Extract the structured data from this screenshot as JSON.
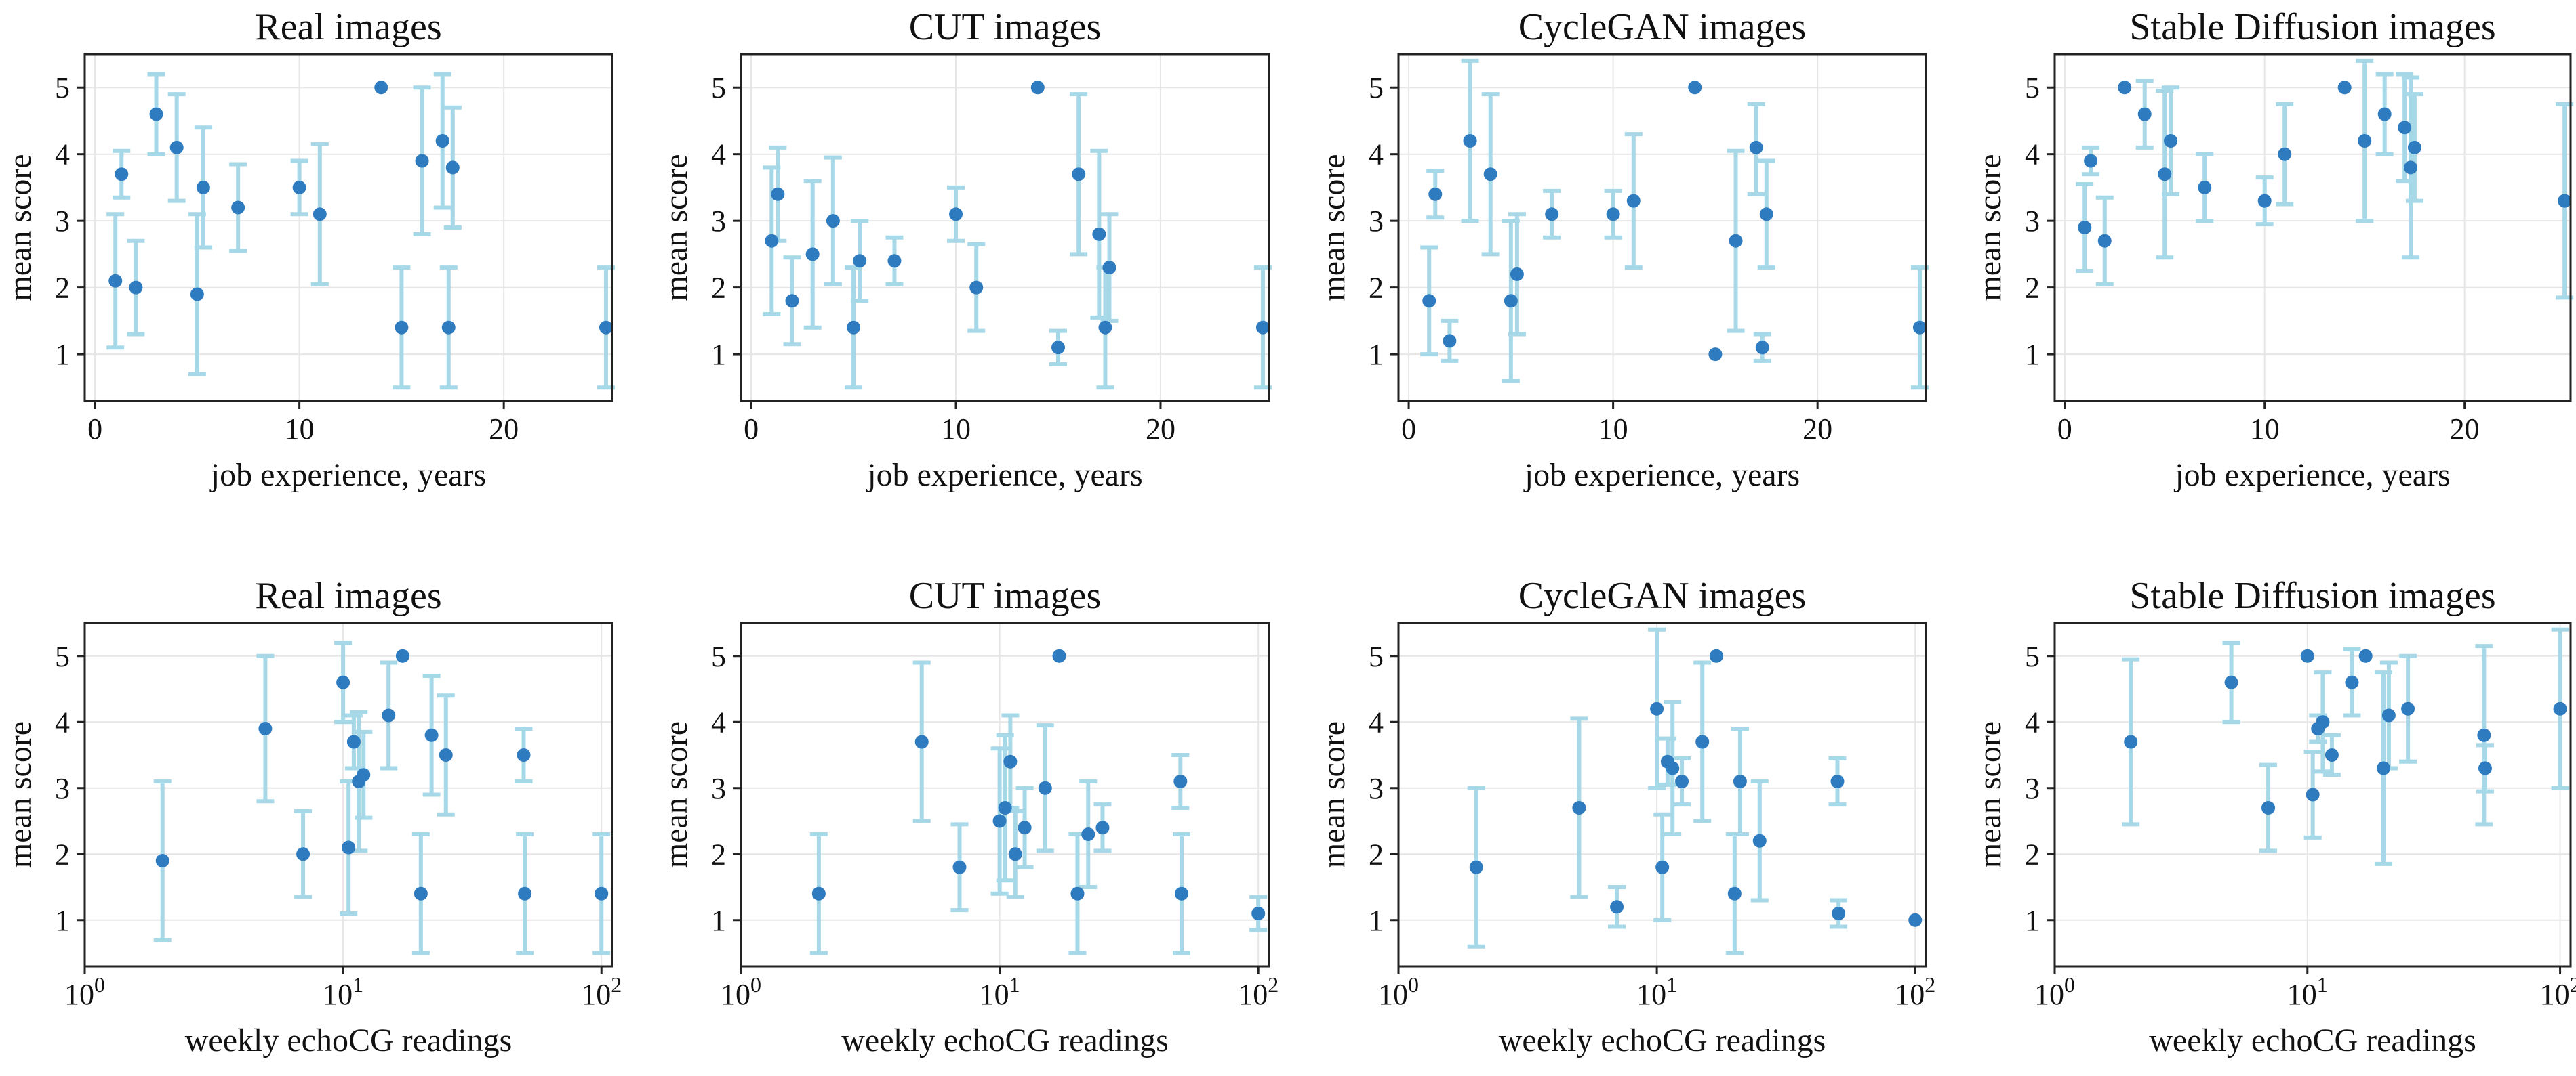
{
  "colors": {
    "point": "#2f7bbf",
    "errorbar": "#a6d8e8",
    "grid": "#e6e6e6",
    "axis": "#222222"
  },
  "chart_data": [
    {
      "type": "scatter",
      "title": "Real images",
      "xlabel": "job experience, years",
      "ylabel": "mean score",
      "xscale": "linear",
      "xlim": [
        -0.5,
        25.3
      ],
      "ylim": [
        0.3,
        5.5
      ],
      "xticks": [
        0,
        10,
        20
      ],
      "yticks": [
        1,
        2,
        3,
        4,
        5
      ],
      "grid": true,
      "error_bars": true,
      "points": [
        {
          "x": 1,
          "y": 2.1,
          "lo": 1.1,
          "hi": 3.1
        },
        {
          "x": 1.3,
          "y": 3.7,
          "lo": 3.35,
          "hi": 4.05
        },
        {
          "x": 2,
          "y": 2.0,
          "lo": 1.3,
          "hi": 2.7
        },
        {
          "x": 3,
          "y": 4.6,
          "lo": 4.0,
          "hi": 5.2
        },
        {
          "x": 4,
          "y": 4.1,
          "lo": 3.3,
          "hi": 4.9
        },
        {
          "x": 5,
          "y": 1.9,
          "lo": 0.7,
          "hi": 3.1
        },
        {
          "x": 5.3,
          "y": 3.5,
          "lo": 2.6,
          "hi": 4.4
        },
        {
          "x": 7,
          "y": 3.2,
          "lo": 2.55,
          "hi": 3.85
        },
        {
          "x": 10,
          "y": 3.5,
          "lo": 3.1,
          "hi": 3.9
        },
        {
          "x": 11,
          "y": 3.1,
          "lo": 2.05,
          "hi": 4.15
        },
        {
          "x": 14,
          "y": 5.0,
          "lo": 5.0,
          "hi": 5.0
        },
        {
          "x": 15,
          "y": 1.4,
          "lo": 0.5,
          "hi": 2.3
        },
        {
          "x": 16,
          "y": 3.9,
          "lo": 2.8,
          "hi": 5.0
        },
        {
          "x": 17,
          "y": 4.2,
          "lo": 3.2,
          "hi": 5.2
        },
        {
          "x": 17.3,
          "y": 1.4,
          "lo": 0.5,
          "hi": 2.3
        },
        {
          "x": 17.5,
          "y": 3.8,
          "lo": 2.9,
          "hi": 4.7
        },
        {
          "x": 25,
          "y": 1.4,
          "lo": 0.5,
          "hi": 2.3
        }
      ]
    },
    {
      "type": "scatter",
      "title": "CUT images",
      "xlabel": "job experience, years",
      "ylabel": "mean score",
      "xscale": "linear",
      "xlim": [
        -0.5,
        25.3
      ],
      "ylim": [
        0.3,
        5.5
      ],
      "xticks": [
        0,
        10,
        20
      ],
      "yticks": [
        1,
        2,
        3,
        4,
        5
      ],
      "grid": true,
      "error_bars": true,
      "points": [
        {
          "x": 1,
          "y": 2.7,
          "lo": 1.6,
          "hi": 3.8
        },
        {
          "x": 1.3,
          "y": 3.4,
          "lo": 2.7,
          "hi": 4.1
        },
        {
          "x": 2,
          "y": 1.8,
          "lo": 1.15,
          "hi": 2.45
        },
        {
          "x": 3,
          "y": 2.5,
          "lo": 1.4,
          "hi": 3.6
        },
        {
          "x": 4,
          "y": 3.0,
          "lo": 2.05,
          "hi": 3.95
        },
        {
          "x": 5,
          "y": 1.4,
          "lo": 0.5,
          "hi": 2.3
        },
        {
          "x": 5.3,
          "y": 2.4,
          "lo": 1.8,
          "hi": 3.0
        },
        {
          "x": 7,
          "y": 2.4,
          "lo": 2.05,
          "hi": 2.75
        },
        {
          "x": 10,
          "y": 3.1,
          "lo": 2.7,
          "hi": 3.5
        },
        {
          "x": 11,
          "y": 2.0,
          "lo": 1.35,
          "hi": 2.65
        },
        {
          "x": 14,
          "y": 5.0,
          "lo": 5.0,
          "hi": 5.0
        },
        {
          "x": 15,
          "y": 1.1,
          "lo": 0.85,
          "hi": 1.35
        },
        {
          "x": 16,
          "y": 3.7,
          "lo": 2.5,
          "hi": 4.9
        },
        {
          "x": 17,
          "y": 2.8,
          "lo": 1.55,
          "hi": 4.05
        },
        {
          "x": 17.3,
          "y": 1.4,
          "lo": 0.5,
          "hi": 2.3
        },
        {
          "x": 17.5,
          "y": 2.3,
          "lo": 1.5,
          "hi": 3.1
        },
        {
          "x": 25,
          "y": 1.4,
          "lo": 0.5,
          "hi": 2.3
        }
      ]
    },
    {
      "type": "scatter",
      "title": "CycleGAN images",
      "xlabel": "job experience, years",
      "ylabel": "mean score",
      "xscale": "linear",
      "xlim": [
        -0.5,
        25.3
      ],
      "ylim": [
        0.3,
        5.5
      ],
      "xticks": [
        0,
        10,
        20
      ],
      "yticks": [
        1,
        2,
        3,
        4,
        5
      ],
      "grid": true,
      "error_bars": true,
      "points": [
        {
          "x": 1,
          "y": 1.8,
          "lo": 1.0,
          "hi": 2.6
        },
        {
          "x": 1.3,
          "y": 3.4,
          "lo": 3.05,
          "hi": 3.75
        },
        {
          "x": 2,
          "y": 1.2,
          "lo": 0.9,
          "hi": 1.5
        },
        {
          "x": 3,
          "y": 4.2,
          "lo": 3.0,
          "hi": 5.4
        },
        {
          "x": 4,
          "y": 3.7,
          "lo": 2.5,
          "hi": 4.9
        },
        {
          "x": 5,
          "y": 1.8,
          "lo": 0.6,
          "hi": 3.0
        },
        {
          "x": 5.3,
          "y": 2.2,
          "lo": 1.3,
          "hi": 3.1
        },
        {
          "x": 7,
          "y": 3.1,
          "lo": 2.75,
          "hi": 3.45
        },
        {
          "x": 10,
          "y": 3.1,
          "lo": 2.75,
          "hi": 3.45
        },
        {
          "x": 11,
          "y": 3.3,
          "lo": 2.3,
          "hi": 4.3
        },
        {
          "x": 14,
          "y": 5.0,
          "lo": 5.0,
          "hi": 5.0
        },
        {
          "x": 15,
          "y": 1.0,
          "lo": 1.0,
          "hi": 1.0
        },
        {
          "x": 16,
          "y": 2.7,
          "lo": 1.35,
          "hi": 4.05
        },
        {
          "x": 17,
          "y": 4.1,
          "lo": 3.4,
          "hi": 4.75
        },
        {
          "x": 17.3,
          "y": 1.1,
          "lo": 0.9,
          "hi": 1.3
        },
        {
          "x": 17.5,
          "y": 3.1,
          "lo": 2.3,
          "hi": 3.9
        },
        {
          "x": 25,
          "y": 1.4,
          "lo": 0.5,
          "hi": 2.3
        }
      ]
    },
    {
      "type": "scatter",
      "title": "Stable Diffusion images",
      "xlabel": "job experience, years",
      "ylabel": "mean score",
      "xscale": "linear",
      "xlim": [
        -0.5,
        25.3
      ],
      "ylim": [
        0.3,
        5.5
      ],
      "xticks": [
        0,
        10,
        20
      ],
      "yticks": [
        1,
        2,
        3,
        4,
        5
      ],
      "grid": true,
      "error_bars": true,
      "points": [
        {
          "x": 1,
          "y": 2.9,
          "lo": 2.25,
          "hi": 3.55
        },
        {
          "x": 1.3,
          "y": 3.9,
          "lo": 3.7,
          "hi": 4.1
        },
        {
          "x": 2,
          "y": 2.7,
          "lo": 2.05,
          "hi": 3.35
        },
        {
          "x": 3,
          "y": 5.0,
          "lo": 5.0,
          "hi": 5.0
        },
        {
          "x": 4,
          "y": 4.6,
          "lo": 4.1,
          "hi": 5.1
        },
        {
          "x": 5,
          "y": 3.7,
          "lo": 2.45,
          "hi": 4.95
        },
        {
          "x": 5.3,
          "y": 4.2,
          "lo": 3.4,
          "hi": 5.0
        },
        {
          "x": 7,
          "y": 3.5,
          "lo": 3.0,
          "hi": 4.0
        },
        {
          "x": 10,
          "y": 3.3,
          "lo": 2.95,
          "hi": 3.65
        },
        {
          "x": 11,
          "y": 4.0,
          "lo": 3.25,
          "hi": 4.75
        },
        {
          "x": 14,
          "y": 5.0,
          "lo": 5.0,
          "hi": 5.0
        },
        {
          "x": 15,
          "y": 4.2,
          "lo": 3.0,
          "hi": 5.4
        },
        {
          "x": 16,
          "y": 4.6,
          "lo": 4.0,
          "hi": 5.2
        },
        {
          "x": 17,
          "y": 4.4,
          "lo": 3.6,
          "hi": 5.2
        },
        {
          "x": 17.3,
          "y": 3.8,
          "lo": 2.45,
          "hi": 5.15
        },
        {
          "x": 17.5,
          "y": 4.1,
          "lo": 3.3,
          "hi": 4.9
        },
        {
          "x": 25,
          "y": 3.3,
          "lo": 1.85,
          "hi": 4.75
        }
      ]
    },
    {
      "type": "scatter",
      "title": "Real images",
      "xlabel": "weekly echoCG readings",
      "ylabel": "mean score",
      "xscale": "log",
      "xlim": [
        1,
        110
      ],
      "ylim": [
        0.3,
        5.5
      ],
      "xticks": [
        1,
        10,
        100
      ],
      "yticks": [
        1,
        2,
        3,
        4,
        5
      ],
      "grid": true,
      "error_bars": true,
      "points": [
        {
          "x": 2,
          "y": 1.9,
          "lo": 0.7,
          "hi": 3.1
        },
        {
          "x": 5,
          "y": 3.9,
          "lo": 2.8,
          "hi": 5.0
        },
        {
          "x": 7,
          "y": 2.0,
          "lo": 1.35,
          "hi": 2.65
        },
        {
          "x": 10,
          "y": 4.6,
          "lo": 4.0,
          "hi": 5.2
        },
        {
          "x": 10.5,
          "y": 2.1,
          "lo": 1.1,
          "hi": 3.1
        },
        {
          "x": 11,
          "y": 3.7,
          "lo": 3.3,
          "hi": 4.1
        },
        {
          "x": 11.5,
          "y": 3.1,
          "lo": 2.05,
          "hi": 4.15
        },
        {
          "x": 12,
          "y": 3.2,
          "lo": 2.55,
          "hi": 3.85
        },
        {
          "x": 15,
          "y": 4.1,
          "lo": 3.3,
          "hi": 4.9
        },
        {
          "x": 17,
          "y": 5.0,
          "lo": 5.0,
          "hi": 5.0
        },
        {
          "x": 20,
          "y": 1.4,
          "lo": 0.5,
          "hi": 2.3
        },
        {
          "x": 22,
          "y": 3.8,
          "lo": 2.9,
          "hi": 4.7
        },
        {
          "x": 25,
          "y": 3.5,
          "lo": 2.6,
          "hi": 4.4
        },
        {
          "x": 50,
          "y": 3.5,
          "lo": 3.1,
          "hi": 3.9
        },
        {
          "x": 50.5,
          "y": 1.4,
          "lo": 0.5,
          "hi": 2.3
        },
        {
          "x": 100,
          "y": 1.4,
          "lo": 0.5,
          "hi": 2.3
        }
      ]
    },
    {
      "type": "scatter",
      "title": "CUT images",
      "xlabel": "weekly echoCG readings",
      "ylabel": "mean score",
      "xscale": "log",
      "xlim": [
        1,
        110
      ],
      "ylim": [
        0.3,
        5.5
      ],
      "xticks": [
        1,
        10,
        100
      ],
      "yticks": [
        1,
        2,
        3,
        4,
        5
      ],
      "grid": true,
      "error_bars": true,
      "points": [
        {
          "x": 2,
          "y": 1.4,
          "lo": 0.5,
          "hi": 2.3
        },
        {
          "x": 5,
          "y": 3.7,
          "lo": 2.5,
          "hi": 4.9
        },
        {
          "x": 7,
          "y": 1.8,
          "lo": 1.15,
          "hi": 2.45
        },
        {
          "x": 10,
          "y": 2.5,
          "lo": 1.4,
          "hi": 3.6
        },
        {
          "x": 10.5,
          "y": 2.7,
          "lo": 1.6,
          "hi": 3.8
        },
        {
          "x": 11,
          "y": 3.4,
          "lo": 2.7,
          "hi": 4.1
        },
        {
          "x": 11.5,
          "y": 2.0,
          "lo": 1.35,
          "hi": 2.65
        },
        {
          "x": 12.5,
          "y": 2.4,
          "lo": 1.8,
          "hi": 3.0
        },
        {
          "x": 15,
          "y": 3.0,
          "lo": 2.05,
          "hi": 3.95
        },
        {
          "x": 17,
          "y": 5.0,
          "lo": 5.0,
          "hi": 5.0
        },
        {
          "x": 20,
          "y": 1.4,
          "lo": 0.5,
          "hi": 2.3
        },
        {
          "x": 22,
          "y": 2.3,
          "lo": 1.5,
          "hi": 3.1
        },
        {
          "x": 25,
          "y": 2.4,
          "lo": 2.05,
          "hi": 2.75
        },
        {
          "x": 50,
          "y": 3.1,
          "lo": 2.7,
          "hi": 3.5
        },
        {
          "x": 50.5,
          "y": 1.4,
          "lo": 0.5,
          "hi": 2.3
        },
        {
          "x": 100,
          "y": 1.1,
          "lo": 0.85,
          "hi": 1.35
        }
      ]
    },
    {
      "type": "scatter",
      "title": "CycleGAN images",
      "xlabel": "weekly echoCG readings",
      "ylabel": "mean score",
      "xscale": "log",
      "xlim": [
        1,
        110
      ],
      "ylim": [
        0.3,
        5.5
      ],
      "xticks": [
        1,
        10,
        100
      ],
      "yticks": [
        1,
        2,
        3,
        4,
        5
      ],
      "grid": true,
      "error_bars": true,
      "points": [
        {
          "x": 2,
          "y": 1.8,
          "lo": 0.6,
          "hi": 3.0
        },
        {
          "x": 5,
          "y": 2.7,
          "lo": 1.35,
          "hi": 4.05
        },
        {
          "x": 7,
          "y": 1.2,
          "lo": 0.9,
          "hi": 1.5
        },
        {
          "x": 10,
          "y": 4.2,
          "lo": 3.0,
          "hi": 5.4
        },
        {
          "x": 10.5,
          "y": 1.8,
          "lo": 1.0,
          "hi": 2.6
        },
        {
          "x": 11,
          "y": 3.4,
          "lo": 3.05,
          "hi": 3.75
        },
        {
          "x": 11.5,
          "y": 3.3,
          "lo": 2.3,
          "hi": 4.3
        },
        {
          "x": 12.5,
          "y": 3.1,
          "lo": 2.75,
          "hi": 3.45
        },
        {
          "x": 15,
          "y": 3.7,
          "lo": 2.5,
          "hi": 4.9
        },
        {
          "x": 17,
          "y": 5.0,
          "lo": 5.0,
          "hi": 5.0
        },
        {
          "x": 20,
          "y": 1.4,
          "lo": 0.5,
          "hi": 2.3
        },
        {
          "x": 21,
          "y": 3.1,
          "lo": 2.3,
          "hi": 3.9
        },
        {
          "x": 25,
          "y": 2.2,
          "lo": 1.3,
          "hi": 3.1
        },
        {
          "x": 50,
          "y": 3.1,
          "lo": 2.75,
          "hi": 3.45
        },
        {
          "x": 50.5,
          "y": 1.1,
          "lo": 0.9,
          "hi": 1.3
        },
        {
          "x": 100,
          "y": 1.0,
          "lo": 1.0,
          "hi": 1.0
        }
      ]
    },
    {
      "type": "scatter",
      "title": "Stable Diffusion images",
      "xlabel": "weekly echoCG readings",
      "ylabel": "mean score",
      "xscale": "log",
      "xlim": [
        1,
        110
      ],
      "ylim": [
        0.3,
        5.5
      ],
      "xticks": [
        1,
        10,
        100
      ],
      "yticks": [
        1,
        2,
        3,
        4,
        5
      ],
      "grid": true,
      "error_bars": true,
      "points": [
        {
          "x": 2,
          "y": 3.7,
          "lo": 2.45,
          "hi": 4.95
        },
        {
          "x": 5,
          "y": 4.6,
          "lo": 4.0,
          "hi": 5.2
        },
        {
          "x": 7,
          "y": 2.7,
          "lo": 2.05,
          "hi": 3.35
        },
        {
          "x": 10,
          "y": 5.0,
          "lo": 5.0,
          "hi": 5.0
        },
        {
          "x": 10.5,
          "y": 2.9,
          "lo": 2.25,
          "hi": 3.55
        },
        {
          "x": 11,
          "y": 3.9,
          "lo": 3.7,
          "hi": 4.1
        },
        {
          "x": 11.5,
          "y": 4.0,
          "lo": 3.25,
          "hi": 4.75
        },
        {
          "x": 12.5,
          "y": 3.5,
          "lo": 3.2,
          "hi": 3.8
        },
        {
          "x": 15,
          "y": 4.6,
          "lo": 4.1,
          "hi": 5.1
        },
        {
          "x": 17,
          "y": 5.0,
          "lo": 5.0,
          "hi": 5.0
        },
        {
          "x": 20,
          "y": 3.3,
          "lo": 1.85,
          "hi": 4.75
        },
        {
          "x": 21,
          "y": 4.1,
          "lo": 3.3,
          "hi": 4.9
        },
        {
          "x": 25,
          "y": 4.2,
          "lo": 3.4,
          "hi": 5.0
        },
        {
          "x": 50,
          "y": 3.8,
          "lo": 2.45,
          "hi": 5.15
        },
        {
          "x": 50.5,
          "y": 3.3,
          "lo": 2.95,
          "hi": 3.65
        },
        {
          "x": 100,
          "y": 4.2,
          "lo": 3.0,
          "hi": 5.4
        }
      ]
    }
  ]
}
